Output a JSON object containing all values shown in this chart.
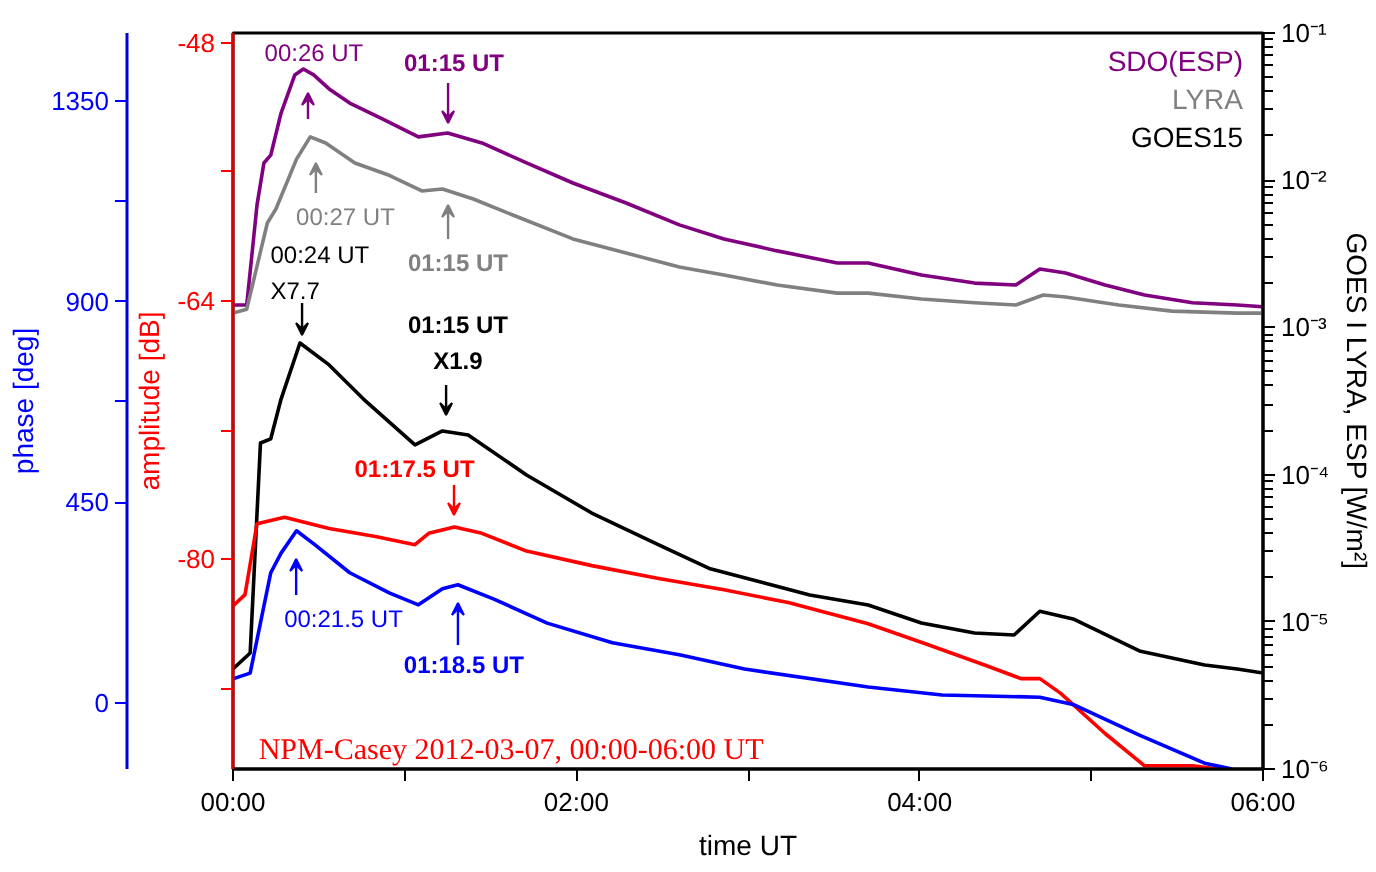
{
  "chart_data": {
    "type": "line",
    "xlabel": "time UT",
    "ylabel": "amplitude [dB]",
    "y2label": "GOES I LYRA, ESP [W/m²]",
    "y3label": "phase [deg]",
    "xlim": [
      0,
      6
    ],
    "xticks": [
      {
        "value": 0,
        "label": "00:00"
      },
      {
        "value": 1,
        "label": null
      },
      {
        "value": 2,
        "label": "02:00"
      },
      {
        "value": 3,
        "label": null
      },
      {
        "value": 4,
        "label": "04:00"
      },
      {
        "value": 5,
        "label": null
      },
      {
        "value": 6,
        "label": "06:00"
      }
    ],
    "ylim": [
      -93.0,
      -47.4
    ],
    "yticks": [
      -48,
      {
        "value": -56,
        "label": null
      },
      -64,
      {
        "value": -72,
        "label": null
      },
      -80,
      {
        "value": -88,
        "label": null
      }
    ],
    "y2lim": [
      1e-06,
      0.1
    ],
    "y2ticks": [
      {
        "value": 1e-06,
        "label": "10⁻⁶"
      },
      {
        "value": 1e-05,
        "label": "10⁻⁵"
      },
      {
        "value": 0.0001,
        "label": "10⁻⁴"
      },
      {
        "value": 0.001,
        "label": "10⁻³"
      },
      {
        "value": 0.01,
        "label": "10⁻²"
      },
      {
        "value": 0.1,
        "label": "10⁻¹"
      }
    ],
    "y3lim": [
      -148,
      1502
    ],
    "y3ticks": [
      0,
      450,
      {
        "value": 675,
        "label": null
      },
      900,
      {
        "value": 1125,
        "label": null
      },
      1350
    ],
    "log": "y2",
    "legend": "top right",
    "series": [
      {
        "name": "SDO(ESP)",
        "color": "#800080",
        "axis": "y2",
        "x": [
          0,
          0.08,
          0.14,
          0.18,
          0.22,
          0.28,
          0.36,
          0.41,
          0.47,
          0.56,
          0.68,
          0.87,
          1.08,
          1.25,
          1.45,
          1.71,
          1.98,
          2.29,
          2.6,
          2.86,
          3.17,
          3.52,
          3.7,
          4.01,
          4.32,
          4.56,
          4.7,
          4.85,
          5.08,
          5.31,
          5.59,
          5.85,
          6.0
        ],
        "values": [
          0.00142,
          0.00142,
          0.0068,
          0.0131,
          0.0148,
          0.0286,
          0.0519,
          0.0569,
          0.0519,
          0.0417,
          0.0334,
          0.0261,
          0.0197,
          0.0209,
          0.0179,
          0.0131,
          0.00957,
          0.007,
          0.00497,
          0.00399,
          0.00331,
          0.00274,
          0.00274,
          0.00227,
          0.002,
          0.00194,
          0.00249,
          0.00234,
          0.00194,
          0.00166,
          0.00147,
          0.00142,
          0.00138
        ]
      },
      {
        "name": "LYRA",
        "color": "#808080",
        "axis": "y2",
        "x": [
          0,
          0.08,
          0.2,
          0.25,
          0.37,
          0.45,
          0.54,
          0.71,
          0.91,
          1.1,
          1.22,
          1.4,
          1.63,
          1.98,
          2.29,
          2.6,
          2.86,
          3.17,
          3.52,
          3.7,
          4.01,
          4.32,
          4.56,
          4.72,
          4.85,
          5.16,
          5.47,
          5.85,
          6.0
        ],
        "values": [
          0.00125,
          0.00133,
          0.00512,
          0.00637,
          0.0139,
          0.0197,
          0.0179,
          0.0131,
          0.0108,
          0.00845,
          0.00871,
          0.00745,
          0.0058,
          0.00399,
          0.0032,
          0.00257,
          0.00227,
          0.00194,
          0.00171,
          0.00171,
          0.00156,
          0.00147,
          0.00142,
          0.00166,
          0.00161,
          0.00142,
          0.00129,
          0.00125,
          0.00125
        ]
      },
      {
        "name": "GOES15",
        "color": "#000000",
        "axis": "y2",
        "x": [
          0,
          0.1,
          0.16,
          0.22,
          0.28,
          0.39,
          0.56,
          0.76,
          1.06,
          1.22,
          1.37,
          1.71,
          2.09,
          2.48,
          2.78,
          3.36,
          3.7,
          4.01,
          4.32,
          4.55,
          4.7,
          4.9,
          5.28,
          5.66,
          5.85,
          6.0
        ],
        "values": [
          4.78e-06,
          6.14e-06,
          0.000164,
          0.000175,
          0.000326,
          0.000783,
          0.000556,
          0.000326,
          0.000159,
          0.000198,
          0.000186,
          9.93e-05,
          5.48e-05,
          3.33e-05,
          2.29e-05,
          1.52e-05,
          1.3e-05,
          9.82e-06,
          8.4e-06,
          8.13e-06,
          1.18e-05,
          1.04e-05,
          6.34e-06,
          5.09e-06,
          4.78e-06,
          4.49e-06
        ]
      },
      {
        "color": "#ff0000",
        "x": [
          0,
          0.07,
          0.14,
          0.3,
          0.56,
          0.83,
          1.06,
          1.14,
          1.29,
          1.45,
          1.71,
          2.09,
          2.48,
          2.86,
          3.24,
          3.7,
          4.05,
          4.39,
          4.59,
          4.7,
          4.82,
          5.08,
          5.31,
          5.59,
          5.74
        ],
        "values": [
          -82.9,
          -82.2,
          -77.8,
          -77.4,
          -78.1,
          -78.6,
          -79.1,
          -78.4,
          -78.0,
          -78.4,
          -79.5,
          -80.4,
          -81.2,
          -81.9,
          -82.7,
          -84.0,
          -85.3,
          -86.6,
          -87.4,
          -87.4,
          -88.3,
          -90.8,
          -92.8,
          -92.8,
          -93.0
        ]
      },
      {
        "color": "#0000ff",
        "axis": "y3",
        "x": [
          0,
          0.1,
          0.22,
          0.28,
          0.37,
          0.48,
          0.68,
          0.91,
          1.08,
          1.22,
          1.31,
          1.52,
          1.83,
          2.21,
          2.6,
          2.98,
          3.7,
          4.13,
          4.7,
          4.9,
          5.28,
          5.66,
          5.82
        ],
        "values": [
          54,
          67,
          292,
          336,
          386,
          354,
          292,
          247,
          220,
          256,
          265,
          233,
          179,
          135,
          108,
          76,
          36,
          18,
          13,
          -4,
          -72,
          -135,
          -148
        ]
      }
    ],
    "annotations": [
      "00:26 UT",
      "01:15 UT",
      "00:27 UT",
      "01:15 UT",
      "00:24 UT\nX7.7",
      "01:15 UT\nX1.9",
      "01:17.5 UT",
      "00:21.5 UT",
      "01:18.5 UT",
      "NPM-Casey 2012-03-07,  00:00-06:00 UT"
    ]
  }
}
